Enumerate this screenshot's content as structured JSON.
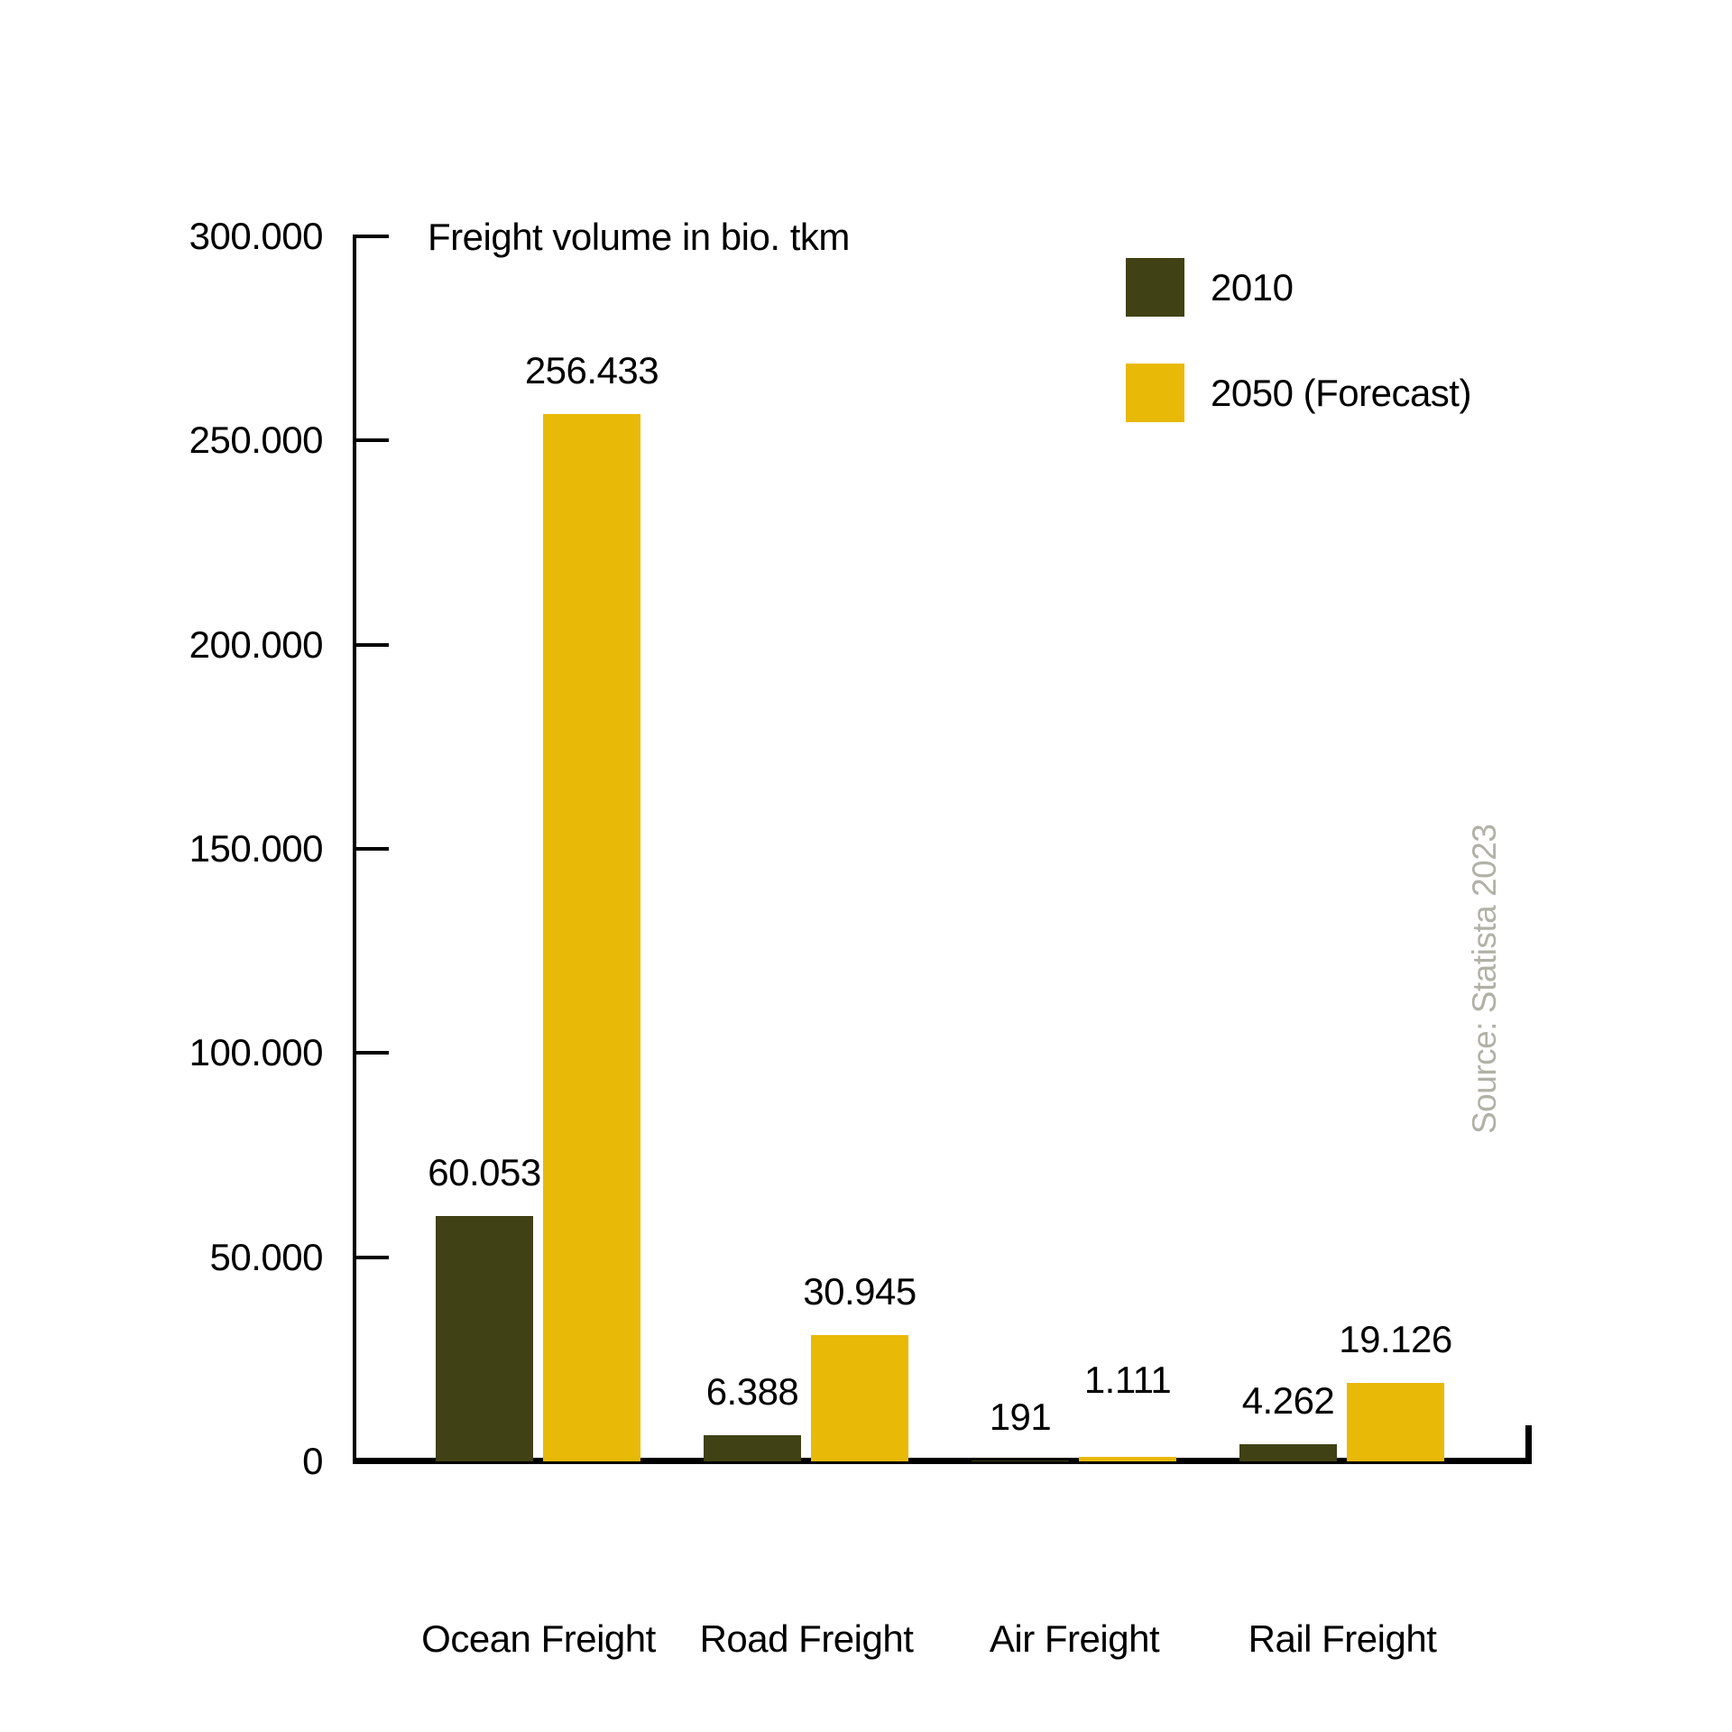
{
  "title": "Freight volume in bio. tkm",
  "source": "Source: Statista 2023",
  "colors": {
    "series_2010": "#404114",
    "series_2050": "#e9b908",
    "axis": "#000000",
    "source_text": "#b1b1a7"
  },
  "legend": [
    {
      "label": "2010",
      "color": "#404114"
    },
    {
      "label": "2050 (Forecast)",
      "color": "#e9b908"
    }
  ],
  "y_axis": {
    "ticks": [
      {
        "value": 0,
        "label": "0"
      },
      {
        "value": 50000,
        "label": "50.000"
      },
      {
        "value": 100000,
        "label": "100.000"
      },
      {
        "value": 150000,
        "label": "150.000"
      },
      {
        "value": 200000,
        "label": "200.000"
      },
      {
        "value": 250000,
        "label": "250.000"
      },
      {
        "value": 300000,
        "label": "300.000"
      }
    ]
  },
  "chart_data": {
    "type": "bar",
    "title": "Freight volume in bio. tkm",
    "categories": [
      "Ocean Freight",
      "Road Freight",
      "Air Freight",
      "Rail Freight"
    ],
    "series": [
      {
        "name": "2010",
        "color": "#404114",
        "values": [
          60053,
          6388,
          191,
          4262
        ],
        "labels": [
          "60.053",
          "6.388",
          "191",
          "4.262"
        ]
      },
      {
        "name": "2050 (Forecast)",
        "color": "#e9b908",
        "values": [
          256433,
          30945,
          1111,
          19126
        ],
        "labels": [
          "256.433",
          "30.945",
          "1.111",
          "19.126"
        ]
      }
    ],
    "ylim": [
      0,
      300000
    ],
    "ytick_step": 50000,
    "grid": false,
    "legend_position": "top-right",
    "label_gaps": [
      [
        25,
        25,
        25,
        25
      ],
      [
        25,
        25,
        62,
        25
      ]
    ]
  }
}
